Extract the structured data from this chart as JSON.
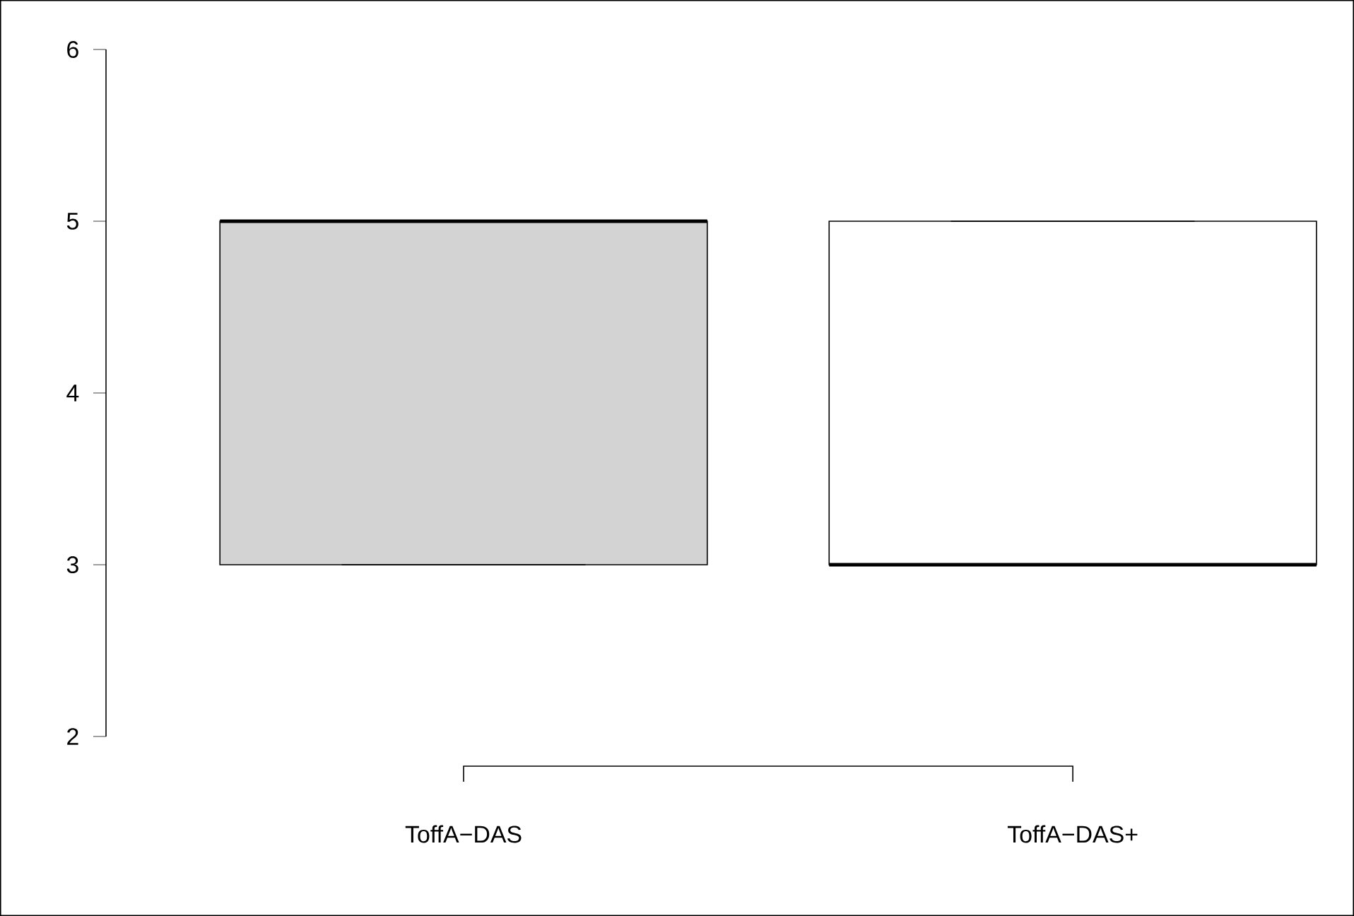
{
  "chart_data": {
    "type": "box",
    "categories": [
      "ToffA−DAS",
      "ToffA−DAS+"
    ],
    "boxes": [
      {
        "low": 3,
        "q1": 3,
        "median": 5,
        "q3": 5,
        "high": 5
      },
      {
        "low": 3,
        "q1": 3,
        "median": 3,
        "q3": 5,
        "high": 5
      }
    ],
    "colors": [
      "#d3d3d3",
      "#ffffff"
    ],
    "ylim": [
      2,
      6
    ],
    "yticks": [
      2,
      3,
      4,
      5,
      6
    ]
  }
}
